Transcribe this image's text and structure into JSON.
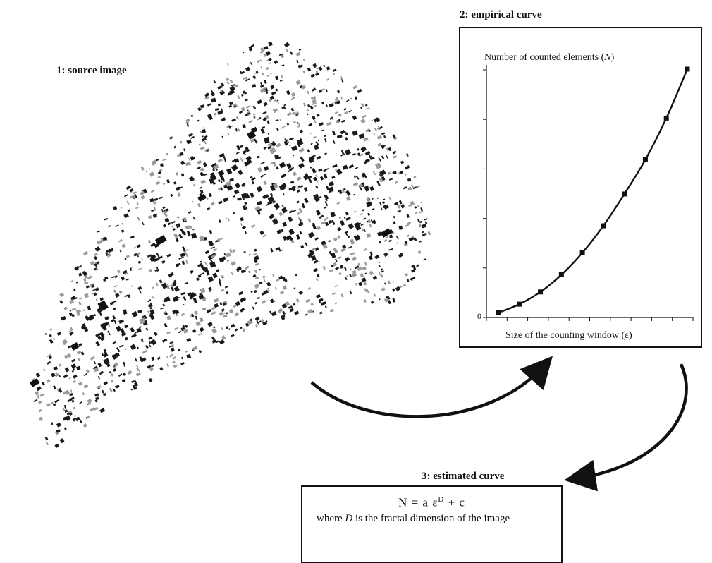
{
  "labels": {
    "source": "1: source image",
    "empirical": "2: empirical curve",
    "estimated": "3: estimated curve"
  },
  "chart_data": {
    "type": "line",
    "title": "",
    "ylabel_pre": "Number of counted elements (",
    "ylabel_var": "N",
    "ylabel_post": ")",
    "xlabel": "Size of the counting window (ε)",
    "y_tick_label": "0",
    "x": [
      1,
      2,
      3,
      4,
      5,
      6,
      7,
      8,
      9,
      10
    ],
    "series": [
      {
        "values": [
          0.5,
          4,
          9,
          16,
          25,
          36,
          49,
          63,
          80,
          100
        ]
      }
    ],
    "ylim": [
      0,
      100
    ],
    "xlim": [
      1,
      10
    ],
    "grid": false
  },
  "formula": {
    "lhs": "N = a ε",
    "exponent": "D",
    "rhs": " + c",
    "desc_pre": "where ",
    "desc_var": "D",
    "desc_post": " is the fractal dimension of the image"
  },
  "colors": {
    "ink": "#111111",
    "map_light": "#9a9a9a"
  }
}
